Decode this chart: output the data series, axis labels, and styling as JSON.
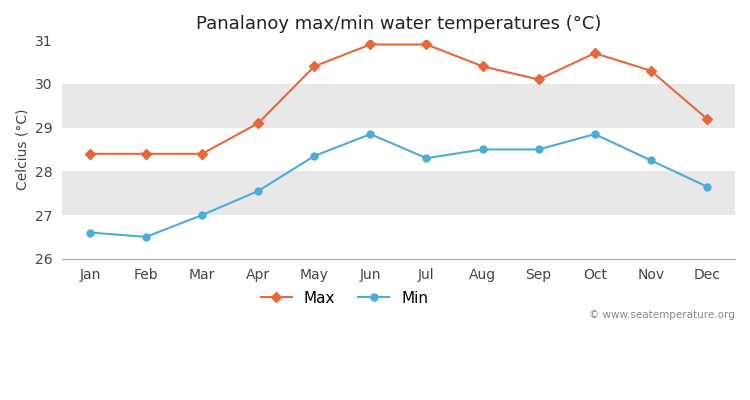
{
  "title": "Panalanoy max/min water temperatures (°C)",
  "ylabel": "Celcius (°C)",
  "months": [
    "Jan",
    "Feb",
    "Mar",
    "Apr",
    "May",
    "Jun",
    "Jul",
    "Aug",
    "Sep",
    "Oct",
    "Nov",
    "Dec"
  ],
  "max_values": [
    28.4,
    28.4,
    28.4,
    29.1,
    30.4,
    30.9,
    30.9,
    30.4,
    30.1,
    30.7,
    30.3,
    29.2
  ],
  "min_values": [
    26.6,
    26.5,
    27.0,
    27.55,
    28.35,
    28.85,
    28.3,
    28.5,
    28.5,
    28.85,
    28.25,
    27.65
  ],
  "max_color": "#e8673a",
  "min_color": "#4aadd6",
  "ylim": [
    26.0,
    31.0
  ],
  "yticks": [
    26,
    27,
    28,
    29,
    30,
    31
  ],
  "bg_color": "#ffffff",
  "band_colors": [
    "#ffffff",
    "#e8e8e8"
  ],
  "spine_color": "#aaaaaa",
  "watermark": "© www.seatemperature.org",
  "legend_max": "Max",
  "legend_min": "Min"
}
